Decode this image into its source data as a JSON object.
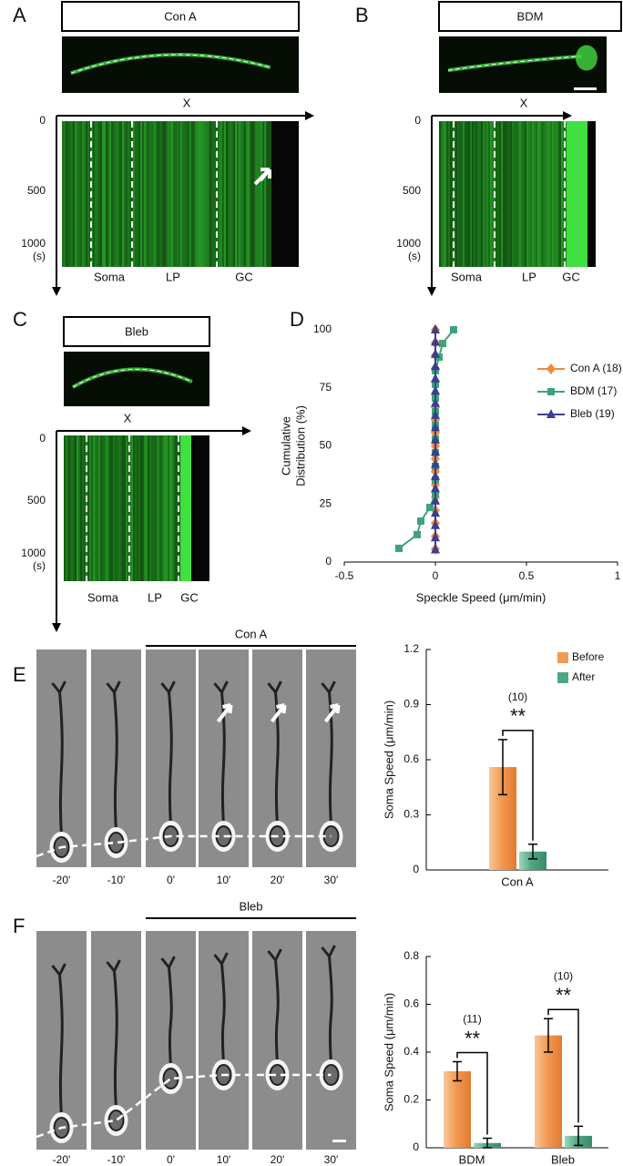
{
  "kymographs": [
    {
      "label": "A",
      "title": "Con A",
      "x_label": "X",
      "yticks": [
        0,
        500,
        1000
      ],
      "y_unit": "(s)",
      "regions": [
        "Soma",
        "LP",
        "GC"
      ]
    },
    {
      "label": "B",
      "title": "BDM",
      "x_label": "X",
      "yticks": [
        0,
        500,
        1000
      ],
      "y_unit": "(s)",
      "regions": [
        "Soma",
        "LP",
        "GC"
      ]
    },
    {
      "label": "C",
      "title": "Bleb",
      "x_label": "X",
      "yticks": [
        0,
        500,
        1000
      ],
      "y_unit": "(s)",
      "regions": [
        "Soma",
        "LP",
        "GC"
      ]
    }
  ],
  "timelapses": [
    {
      "label": "E",
      "treatment": "Con A",
      "times": [
        "-20'",
        "-10'",
        "0'",
        "10'",
        "20'",
        "30'"
      ]
    },
    {
      "label": "F",
      "treatment": "Bleb",
      "times": [
        "-20'",
        "-10'",
        "0'",
        "10'",
        "20'",
        "30'"
      ]
    }
  ],
  "chart_data": [
    {
      "type": "line",
      "label": "D",
      "xlabel": "Speckle Speed (μm/min)",
      "ylabel": [
        "Cumulative",
        "Distribution (%)"
      ],
      "xlim": [
        -0.5,
        1
      ],
      "xticks": [
        -0.5,
        0,
        0.5,
        1
      ],
      "ylim": [
        0,
        100
      ],
      "yticks": [
        0,
        25,
        50,
        75,
        100
      ],
      "legend": "upper right",
      "series": [
        {
          "name": "Con A (18)",
          "color": "#f08a3c",
          "marker": "diamond",
          "x": [
            0,
            0,
            0,
            0,
            0,
            0,
            0,
            0,
            0,
            0,
            0,
            0,
            0,
            0,
            0,
            0,
            0,
            0
          ],
          "values": [
            5.6,
            11.1,
            16.7,
            22.2,
            27.8,
            33.3,
            38.9,
            44.4,
            50,
            55.6,
            61.1,
            66.7,
            72.2,
            77.8,
            83.3,
            88.9,
            94.4,
            100
          ]
        },
        {
          "name": "BDM (17)",
          "color": "#3ea37a",
          "marker": "square",
          "x": [
            -0.2,
            -0.1,
            -0.08,
            -0.03,
            0,
            0,
            0,
            0,
            0,
            0,
            0,
            0,
            0,
            0,
            0.02,
            0.04,
            0.1
          ],
          "values": [
            5.9,
            11.8,
            17.6,
            23.5,
            29.4,
            35.3,
            41.2,
            47.1,
            52.9,
            58.8,
            64.7,
            70.6,
            76.5,
            82.4,
            88.2,
            94.1,
            100
          ]
        },
        {
          "name": "Bleb (19)",
          "color": "#3a3f8f",
          "marker": "triangle",
          "x": [
            0,
            0,
            0,
            0,
            0,
            0,
            0,
            0,
            0,
            0,
            0,
            0,
            0,
            0,
            0,
            0,
            0,
            0,
            0
          ],
          "values": [
            5.3,
            10.5,
            15.8,
            21.1,
            26.3,
            31.6,
            36.8,
            42.1,
            47.4,
            52.6,
            57.9,
            63.2,
            68.4,
            73.7,
            78.9,
            84.2,
            89.5,
            94.7,
            100
          ]
        }
      ]
    },
    {
      "type": "bar",
      "label": "E",
      "ylabel": "Soma Speed (μm/min)",
      "categories": [
        "Con A"
      ],
      "ylim": [
        0,
        1.2
      ],
      "yticks": [
        0,
        0.3,
        0.6,
        0.9,
        1.2
      ],
      "legend": "upper right",
      "series": [
        {
          "name": "Before",
          "color": "#f39a52",
          "values": [
            0.56
          ],
          "errors": [
            0.15
          ]
        },
        {
          "name": "After",
          "color": "#4fa884",
          "values": [
            0.1
          ],
          "errors": [
            0.04
          ]
        }
      ],
      "annotations": [
        {
          "n": "(10)",
          "sig": "**"
        }
      ]
    },
    {
      "type": "bar",
      "label": "F",
      "ylabel": "Soma Speed (μm/min)",
      "categories": [
        "BDM",
        "Bleb"
      ],
      "ylim": [
        0,
        0.8
      ],
      "yticks": [
        0,
        0.2,
        0.4,
        0.6,
        0.8
      ],
      "series": [
        {
          "name": "Before",
          "color": "#f39a52",
          "values": [
            0.32,
            0.47
          ],
          "errors": [
            0.04,
            0.07
          ]
        },
        {
          "name": "After",
          "color": "#4fa884",
          "values": [
            0.02,
            0.05
          ],
          "errors": [
            0.02,
            0.04
          ]
        }
      ],
      "annotations": [
        {
          "n": "(11)",
          "sig": "**"
        },
        {
          "n": "(10)",
          "sig": "**"
        }
      ]
    }
  ]
}
